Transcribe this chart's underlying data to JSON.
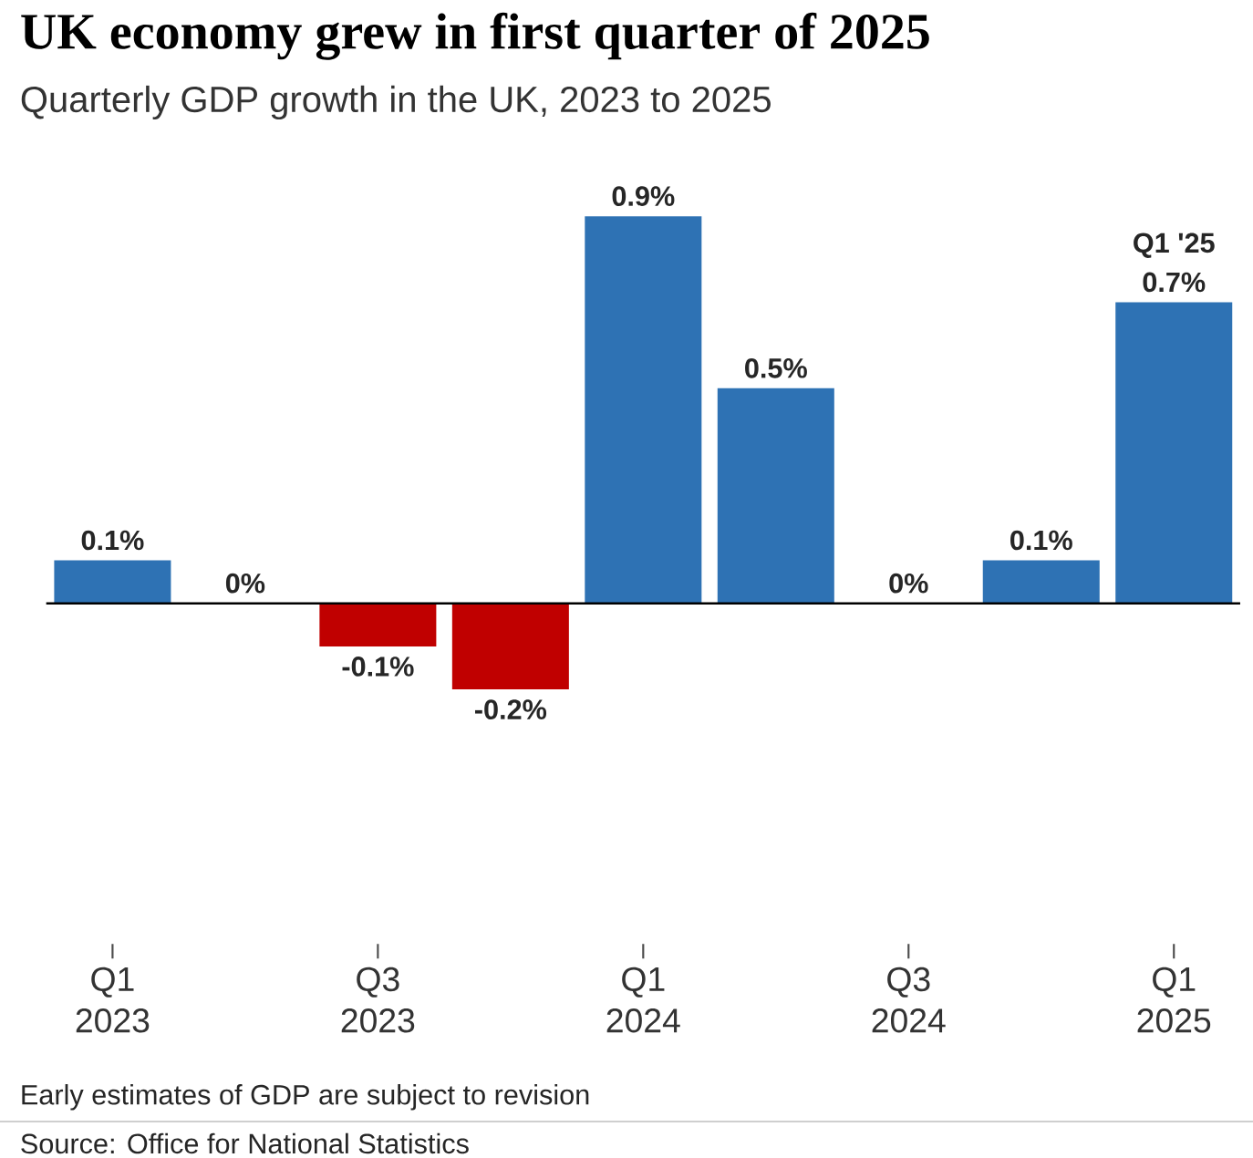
{
  "chart_data": {
    "type": "bar",
    "title": "UK economy grew in first quarter of 2025",
    "subtitle": "Quarterly GDP growth in the UK, 2023 to 2025",
    "categories": [
      "Q1 2023",
      null,
      "Q3 2023",
      null,
      "Q1 2024",
      null,
      "Q3 2024",
      null,
      "Q1 2025"
    ],
    "values": [
      0.1,
      0,
      -0.1,
      -0.2,
      0.9,
      0.5,
      0,
      0.1,
      0.7
    ],
    "colors": [
      "#2e72b4",
      "#2e72b4",
      "#c00000",
      "#c00000",
      "#2e72b4",
      "#2e72b4",
      "#2e72b4",
      "#2e72b4",
      "#2e72b4"
    ],
    "value_labels": [
      "0.1%",
      "0%",
      "-0.1%",
      "-0.2%",
      "0.9%",
      "0.5%",
      "0%",
      "0.1%",
      "0.7%"
    ],
    "annotations": [
      {
        "text": "Q1 '25",
        "x": "Q1 2025",
        "y": 0.7
      },
      "Early estimates of GDP are subject to revision",
      "Source: Office for National Statistics"
    ]
  }
}
